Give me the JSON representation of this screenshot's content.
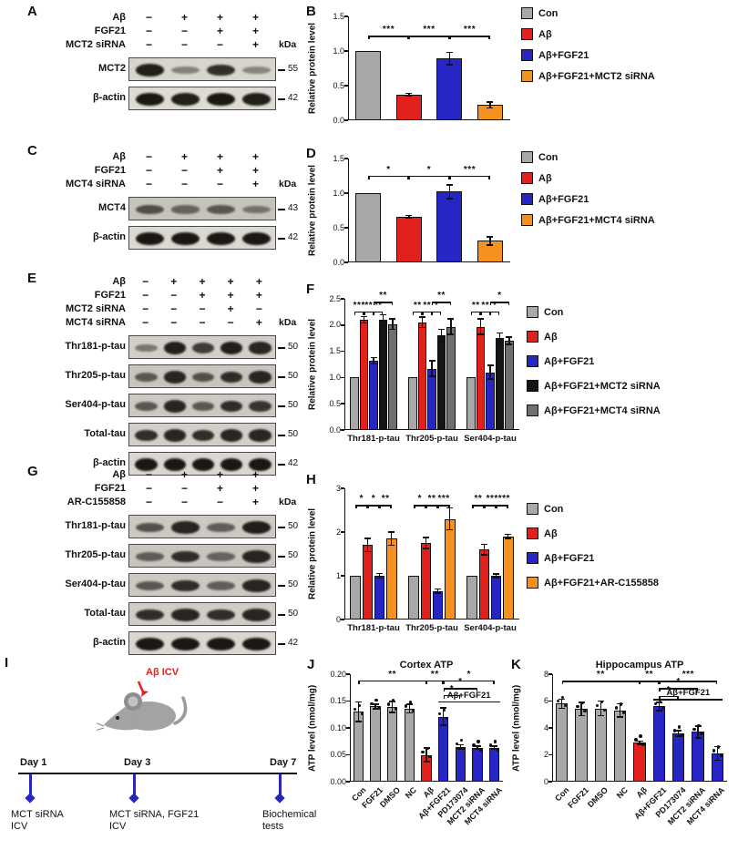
{
  "colors": {
    "gray": "#a8a8a8",
    "red": "#e2211c",
    "blue": "#2726c4",
    "orange": "#f5921f",
    "black": "#151515",
    "darkgray": "#6f6f6f"
  },
  "letters": {
    "A": "A",
    "B": "B",
    "C": "C",
    "D": "D",
    "E": "E",
    "F": "F",
    "G": "G",
    "H": "H",
    "I": "I",
    "J": "J",
    "K": "K"
  },
  "panels": {
    "A": {
      "kda_label": "kDa",
      "header_rows": [
        {
          "label": "Aβ",
          "signs": [
            "−",
            "+",
            "+",
            "+"
          ]
        },
        {
          "label": "FGF21",
          "signs": [
            "−",
            "−",
            "+",
            "+"
          ]
        },
        {
          "label": "MCT2 siRNA",
          "signs": [
            "−",
            "−",
            "−",
            "+"
          ]
        }
      ],
      "bands": [
        {
          "label": "MCT2",
          "kda": "55",
          "bg": "#d8d4ce",
          "intensities": [
            0.95,
            0.3,
            0.85,
            0.28
          ]
        },
        {
          "label": "β-actin",
          "kda": "42",
          "bg": "#dedad4",
          "intensities": [
            1,
            0.95,
            1,
            0.95
          ]
        }
      ]
    },
    "C": {
      "kda_label": "kDa",
      "header_rows": [
        {
          "label": "Aβ",
          "signs": [
            "−",
            "+",
            "+",
            "+"
          ]
        },
        {
          "label": "FGF21",
          "signs": [
            "−",
            "−",
            "+",
            "+"
          ]
        },
        {
          "label": "MCT4 siRNA",
          "signs": [
            "−",
            "−",
            "−",
            "+"
          ]
        }
      ],
      "bands": [
        {
          "label": "MCT4",
          "kda": "43",
          "bg": "#c6c2bc",
          "intensities": [
            0.6,
            0.45,
            0.55,
            0.35
          ]
        },
        {
          "label": "β-actin",
          "kda": "42",
          "bg": "#dcd8d2",
          "intensities": [
            1,
            1,
            1,
            1
          ]
        }
      ]
    },
    "E": {
      "kda_label": "kDa",
      "header_rows": [
        {
          "label": "Aβ",
          "signs": [
            "−",
            "+",
            "+",
            "+",
            "+"
          ]
        },
        {
          "label": "FGF21",
          "signs": [
            "−",
            "−",
            "+",
            "+",
            "+"
          ]
        },
        {
          "label": "MCT2 siRNA",
          "signs": [
            "−",
            "−",
            "−",
            "+",
            "−"
          ]
        },
        {
          "label": "MCT4 siRNA",
          "signs": [
            "−",
            "−",
            "−",
            "−",
            "+"
          ]
        }
      ],
      "bands": [
        {
          "label": "Thr181-p-tau",
          "kda": "50",
          "bg": "#d2cec8",
          "intensities": [
            0.35,
            0.95,
            0.75,
            0.95,
            0.9
          ]
        },
        {
          "label": "Thr205-p-tau",
          "kda": "50",
          "bg": "#c8c4be",
          "intensities": [
            0.55,
            0.9,
            0.6,
            0.85,
            0.9
          ]
        },
        {
          "label": "Ser404-p-tau",
          "kda": "50",
          "bg": "#ccc8c2",
          "intensities": [
            0.55,
            0.9,
            0.55,
            0.85,
            0.8
          ]
        },
        {
          "label": "Total-tau",
          "kda": "50",
          "bg": "#d2cec8",
          "intensities": [
            0.85,
            0.9,
            0.85,
            0.9,
            0.9
          ]
        },
        {
          "label": "β-actin",
          "kda": "42",
          "bg": "#dad6d0",
          "intensities": [
            1,
            1,
            1,
            1,
            1
          ]
        }
      ]
    },
    "G": {
      "kda_label": "kDa",
      "header_rows": [
        {
          "label": "Aβ",
          "signs": [
            "−",
            "+",
            "+",
            "+"
          ]
        },
        {
          "label": "FGF21",
          "signs": [
            "−",
            "−",
            "+",
            "+"
          ]
        },
        {
          "label": "AR-C155858",
          "signs": [
            "−",
            "−",
            "−",
            "+"
          ]
        }
      ],
      "bands": [
        {
          "label": "Thr181-p-tau",
          "kda": "50",
          "bg": "#ccc8c2",
          "intensities": [
            0.6,
            0.9,
            0.5,
            0.95
          ]
        },
        {
          "label": "Thr205-p-tau",
          "kda": "50",
          "bg": "#c8c4be",
          "intensities": [
            0.5,
            0.85,
            0.45,
            0.9
          ]
        },
        {
          "label": "Ser404-p-tau",
          "kda": "50",
          "bg": "#ccc8c2",
          "intensities": [
            0.55,
            0.85,
            0.5,
            0.9
          ]
        },
        {
          "label": "Total-tau",
          "kda": "50",
          "bg": "#d0ccc6",
          "intensities": [
            0.85,
            0.9,
            0.85,
            0.9
          ]
        },
        {
          "label": "β-actin",
          "kda": "42",
          "bg": "#dad6d0",
          "intensities": [
            1,
            1,
            1,
            1
          ]
        }
      ]
    },
    "I": {
      "timeline": {
        "mouse_label": "Aβ ICV",
        "points": [
          {
            "day": "Day 1",
            "desc_lines": [
              "MCT siRNA",
              "ICV"
            ]
          },
          {
            "day": "Day 3",
            "desc_lines": [
              "MCT siRNA, FGF21",
              "ICV"
            ]
          },
          {
            "day": "Day 7",
            "desc_lines": [
              "Biochemical",
              "tests"
            ]
          }
        ]
      }
    }
  },
  "chart_data": [
    {
      "id": "B",
      "type": "bar",
      "ylabel": "Relative protein level",
      "ylim": [
        0,
        1.5
      ],
      "yticks": [
        0,
        0.5,
        1,
        1.5
      ],
      "ytick_labels": [
        "0.0",
        "0.5",
        "1.0",
        "1.5"
      ],
      "categories": [
        "Con",
        "Aβ",
        "Aβ+FGF21",
        "Aβ+FGF21+MCT2 siRNA"
      ],
      "values": [
        1.0,
        0.37,
        0.89,
        0.22
      ],
      "errors": [
        0,
        0.02,
        0.09,
        0.04
      ],
      "bar_colors": [
        "gray",
        "red",
        "blue",
        "orange"
      ],
      "significance": [
        {
          "a": 0,
          "b": 1,
          "label": "***",
          "v": 1.22
        },
        {
          "a": 1,
          "b": 2,
          "label": "***",
          "v": 1.22
        },
        {
          "a": 2,
          "b": 3,
          "label": "***",
          "v": 1.22
        }
      ],
      "legend": [
        {
          "label": "Con",
          "color": "gray"
        },
        {
          "label": "Aβ",
          "color": "red"
        },
        {
          "label": "Aβ+FGF21",
          "color": "blue"
        },
        {
          "label": "Aβ+FGF21+MCT2 siRNA",
          "color": "orange"
        }
      ]
    },
    {
      "id": "D",
      "type": "bar",
      "ylabel": "Relative protein level",
      "ylim": [
        0,
        1.5
      ],
      "yticks": [
        0,
        0.5,
        1,
        1.5
      ],
      "ytick_labels": [
        "0.0",
        "0.5",
        "1.0",
        "1.5"
      ],
      "categories": [
        "Con",
        "Aβ",
        "Aβ+FGF21",
        "Aβ+FGF21+MCT4 siRNA"
      ],
      "values": [
        1.0,
        0.66,
        1.02,
        0.31
      ],
      "errors": [
        0,
        0.02,
        0.1,
        0.06
      ],
      "bar_colors": [
        "gray",
        "red",
        "blue",
        "orange"
      ],
      "significance": [
        {
          "a": 0,
          "b": 1,
          "label": "*",
          "v": 1.25
        },
        {
          "a": 1,
          "b": 2,
          "label": "*",
          "v": 1.25
        },
        {
          "a": 2,
          "b": 3,
          "label": "***",
          "v": 1.25
        }
      ],
      "legend": [
        {
          "label": "Con",
          "color": "gray"
        },
        {
          "label": "Aβ",
          "color": "red"
        },
        {
          "label": "Aβ+FGF21",
          "color": "blue"
        },
        {
          "label": "Aβ+FGF21+MCT4 siRNA",
          "color": "orange"
        }
      ]
    },
    {
      "id": "F",
      "type": "grouped",
      "ylabel": "Relative protein level",
      "ylim": [
        0,
        2.5
      ],
      "yticks": [
        0,
        0.5,
        1,
        1.5,
        2,
        2.5
      ],
      "ytick_labels": [
        "0.0",
        "0.5",
        "1.0",
        "1.5",
        "2.0",
        "2.5"
      ],
      "categories": [
        "Thr181-p-tau",
        "Thr205-p-tau",
        "Ser404-p-tau"
      ],
      "series": [
        {
          "name": "Con",
          "color": "gray",
          "values": [
            1,
            1,
            1
          ],
          "errors": [
            0,
            0,
            0
          ]
        },
        {
          "name": "Aβ",
          "color": "red",
          "values": [
            2.1,
            2.05,
            1.97
          ],
          "errors": [
            0.06,
            0.1,
            0.15
          ]
        },
        {
          "name": "Aβ+FGF21",
          "color": "blue",
          "values": [
            1.32,
            1.17,
            1.1
          ],
          "errors": [
            0.06,
            0.15,
            0.13
          ]
        },
        {
          "name": "Aβ+FGF21+MCT2 siRNA",
          "color": "black",
          "values": [
            2.1,
            1.8,
            1.75
          ],
          "errors": [
            0.1,
            0.12,
            0.1
          ]
        },
        {
          "name": "Aβ+FGF21+MCT4 siRNA",
          "color": "darkgray",
          "values": [
            2.02,
            1.97,
            1.7
          ],
          "errors": [
            0.1,
            0.15,
            0.07
          ]
        }
      ],
      "significance": [
        {
          "g": 0,
          "a": 0,
          "b": 1,
          "label": "***",
          "v": 2.26
        },
        {
          "g": 0,
          "a": 1,
          "b": 2,
          "label": "**",
          "v": 2.26
        },
        {
          "g": 0,
          "a": 2,
          "b": 3,
          "label": "**",
          "v": 2.26
        },
        {
          "g": 0,
          "a": 2,
          "b": 4,
          "label": "**",
          "v": 2.44
        },
        {
          "g": 1,
          "a": 0,
          "b": 1,
          "label": "**",
          "v": 2.26
        },
        {
          "g": 1,
          "a": 1,
          "b": 2,
          "label": "**",
          "v": 2.26
        },
        {
          "g": 1,
          "a": 2,
          "b": 3,
          "label": "*",
          "v": 2.26
        },
        {
          "g": 1,
          "a": 2,
          "b": 4,
          "label": "**",
          "v": 2.44
        },
        {
          "g": 2,
          "a": 0,
          "b": 1,
          "label": "**",
          "v": 2.26
        },
        {
          "g": 2,
          "a": 1,
          "b": 2,
          "label": "**",
          "v": 2.26
        },
        {
          "g": 2,
          "a": 2,
          "b": 3,
          "label": "*",
          "v": 2.26
        },
        {
          "g": 2,
          "a": 2,
          "b": 4,
          "label": "*",
          "v": 2.44
        }
      ],
      "legend": [
        {
          "label": "Con",
          "color": "gray"
        },
        {
          "label": "Aβ",
          "color": "red"
        },
        {
          "label": "Aβ+FGF21",
          "color": "blue"
        },
        {
          "label": "Aβ+FGF21+MCT2 siRNA",
          "color": "black"
        },
        {
          "label": "Aβ+FGF21+MCT4 siRNA",
          "color": "darkgray"
        }
      ]
    },
    {
      "id": "H",
      "type": "grouped",
      "ylabel": "Relative protein level",
      "ylim": [
        0,
        3
      ],
      "yticks": [
        0,
        1,
        2,
        3
      ],
      "ytick_labels": [
        "0",
        "1",
        "2",
        "3"
      ],
      "categories": [
        "Thr181-p-tau",
        "Thr205-p-tau",
        "Ser404-p-tau"
      ],
      "series": [
        {
          "name": "Con",
          "color": "gray",
          "values": [
            1,
            1,
            1
          ],
          "errors": [
            0,
            0,
            0
          ]
        },
        {
          "name": "Aβ",
          "color": "red",
          "values": [
            1.7,
            1.75,
            1.6
          ],
          "errors": [
            0.15,
            0.12,
            0.12
          ]
        },
        {
          "name": "Aβ+FGF21",
          "color": "blue",
          "values": [
            1.0,
            0.65,
            1.0
          ],
          "errors": [
            0.05,
            0.05,
            0.04
          ]
        },
        {
          "name": "Aβ+FGF21+AR-C155858",
          "color": "orange",
          "values": [
            1.85,
            2.3,
            1.9
          ],
          "errors": [
            0.15,
            0.25,
            0.05
          ]
        }
      ],
      "significance": [
        {
          "g": 0,
          "a": 0,
          "b": 1,
          "label": "*",
          "v": 2.62
        },
        {
          "g": 0,
          "a": 1,
          "b": 2,
          "label": "*",
          "v": 2.62
        },
        {
          "g": 0,
          "a": 2,
          "b": 3,
          "label": "**",
          "v": 2.62
        },
        {
          "g": 1,
          "a": 0,
          "b": 1,
          "label": "*",
          "v": 2.62
        },
        {
          "g": 1,
          "a": 1,
          "b": 2,
          "label": "**",
          "v": 2.62
        },
        {
          "g": 1,
          "a": 2,
          "b": 3,
          "label": "***",
          "v": 2.62
        },
        {
          "g": 2,
          "a": 0,
          "b": 1,
          "label": "**",
          "v": 2.62
        },
        {
          "g": 2,
          "a": 1,
          "b": 2,
          "label": "**",
          "v": 2.62
        },
        {
          "g": 2,
          "a": 2,
          "b": 3,
          "label": "****",
          "v": 2.62
        }
      ],
      "legend": [
        {
          "label": "Con",
          "color": "gray"
        },
        {
          "label": "Aβ",
          "color": "red"
        },
        {
          "label": "Aβ+FGF21",
          "color": "blue"
        },
        {
          "label": "Aβ+FGF21+AR-C155858",
          "color": "orange"
        }
      ]
    },
    {
      "id": "J",
      "type": "bar",
      "title": "Cortex ATP",
      "ylabel": "ATP level (nmol/mg)",
      "ylim": [
        0,
        0.2
      ],
      "yticks": [
        0,
        0.05,
        0.1,
        0.15,
        0.2
      ],
      "ytick_labels": [
        "0.00",
        "0.05",
        "0.10",
        "0.15",
        "0.20"
      ],
      "categories": [
        "Con",
        "FGF21",
        "DMSO",
        "NC",
        "Aβ",
        "Aβ+FGF21",
        "PD173074",
        "MCT2 siRNA",
        "MCT4 siRNA"
      ],
      "values": [
        0.13,
        0.14,
        0.139,
        0.136,
        0.05,
        0.121,
        0.065,
        0.063,
        0.063
      ],
      "errors": [
        0.018,
        0.004,
        0.01,
        0.008,
        0.013,
        0.016,
        0.004,
        0.003,
        0.003
      ],
      "bar_colors": [
        "gray",
        "gray",
        "gray",
        "gray",
        "red",
        "blue",
        "blue",
        "blue",
        "blue"
      ],
      "rotated_xlabels": true,
      "points": true,
      "annotation": {
        "label": "Aβ+FGF21",
        "from": 5,
        "to": 8,
        "v": 0.149
      },
      "significance": [
        {
          "a": 0,
          "b": 4,
          "label": "**",
          "v": 0.188
        },
        {
          "a": 4,
          "b": 5,
          "label": "**",
          "v": 0.188
        },
        {
          "a": 5,
          "b": 8,
          "label": "*",
          "v": 0.188
        },
        {
          "a": 5,
          "b": 7,
          "label": "*",
          "v": 0.174
        },
        {
          "a": 5,
          "b": 6,
          "label": "*",
          "v": 0.161
        }
      ]
    },
    {
      "id": "K",
      "type": "bar",
      "title": "Hippocampus ATP",
      "ylabel": "ATP level (nmol/mg)",
      "ylim": [
        0,
        8
      ],
      "yticks": [
        0,
        2,
        4,
        6,
        8
      ],
      "ytick_labels": [
        "0",
        "2",
        "4",
        "6",
        "8"
      ],
      "categories": [
        "Con",
        "FGF21",
        "DMSO",
        "NC",
        "Aβ",
        "Aβ+FGF21",
        "PD173074",
        "MCT2 siRNA",
        "MCT4 siRNA"
      ],
      "values": [
        5.8,
        5.4,
        5.45,
        5.3,
        2.9,
        5.6,
        3.6,
        3.7,
        2.1
      ],
      "errors": [
        0.35,
        0.5,
        0.55,
        0.5,
        0.12,
        0.3,
        0.2,
        0.45,
        0.5
      ],
      "bar_colors": [
        "gray",
        "gray",
        "gray",
        "gray",
        "red",
        "blue",
        "blue",
        "blue",
        "blue"
      ],
      "rotated_xlabels": true,
      "points": true,
      "annotation": {
        "label": "Aβ+FGF21",
        "from": 5,
        "to": 8,
        "v": 6.15
      },
      "significance": [
        {
          "a": 0,
          "b": 4,
          "label": "**",
          "v": 7.5
        },
        {
          "a": 4,
          "b": 5,
          "label": "**",
          "v": 7.5
        },
        {
          "a": 5,
          "b": 8,
          "label": "***",
          "v": 7.5
        },
        {
          "a": 5,
          "b": 7,
          "label": "*",
          "v": 6.95
        },
        {
          "a": 5,
          "b": 6,
          "label": "*",
          "v": 6.4
        }
      ]
    }
  ]
}
